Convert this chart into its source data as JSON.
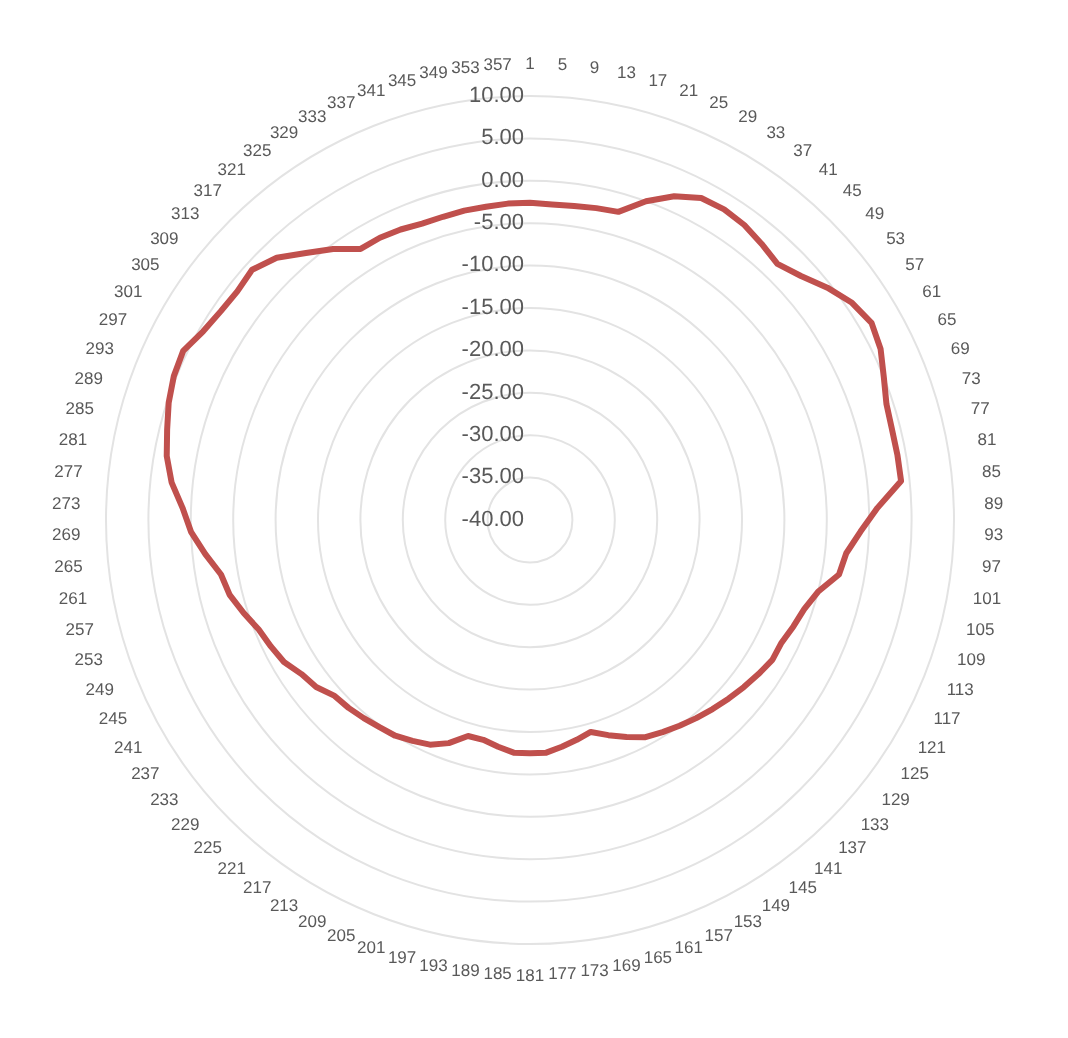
{
  "chart_data": {
    "type": "radar",
    "categories": [
      "1",
      "5",
      "9",
      "13",
      "17",
      "21",
      "25",
      "29",
      "33",
      "37",
      "41",
      "45",
      "49",
      "53",
      "57",
      "61",
      "65",
      "69",
      "73",
      "77",
      "81",
      "85",
      "89",
      "93",
      "97",
      "101",
      "105",
      "109",
      "113",
      "117",
      "121",
      "125",
      "129",
      "133",
      "137",
      "141",
      "145",
      "149",
      "153",
      "157",
      "161",
      "165",
      "169",
      "173",
      "177",
      "181",
      "185",
      "189",
      "193",
      "197",
      "201",
      "205",
      "209",
      "213",
      "217",
      "221",
      "225",
      "229",
      "233",
      "237",
      "241",
      "245",
      "249",
      "253",
      "257",
      "261",
      "265",
      "269",
      "273",
      "277",
      "281",
      "285",
      "289",
      "293",
      "297",
      "301",
      "305",
      "309",
      "313",
      "317",
      "321",
      "325",
      "329",
      "333",
      "337",
      "341",
      "345",
      "349",
      "353",
      "357"
    ],
    "series": [
      {
        "color": "#c0504d",
        "values": [
          -2.6,
          -2.7,
          -2.6,
          -2.4,
          -2.2,
          0,
          1.8,
          3,
          3.2,
          3,
          2.5,
          2,
          3,
          4.5,
          5.8,
          6.5,
          6,
          5,
          4.2,
          4,
          4,
          4,
          1,
          -1,
          -2.5,
          -3,
          -5,
          -6,
          -6.5,
          -7,
          -7,
          -7.5,
          -8,
          -8.5,
          -9,
          -9.5,
          -10,
          -10.5,
          -11,
          -12,
          -13,
          -14,
          -13.5,
          -13,
          -12.5,
          -12.5,
          -12.5,
          -13,
          -13.5,
          -13.5,
          -12,
          -11,
          -10.5,
          -10,
          -9.8,
          -9.5,
          -9.2,
          -9,
          -8,
          -7.5,
          -6.5,
          -6,
          -5.5,
          -4.5,
          -3.5,
          -3,
          -1.5,
          0,
          1,
          2.5,
          3.5,
          4.1,
          4.8,
          5.3,
          5.5,
          4.5,
          4,
          3.8,
          4.1,
          3,
          1.1,
          -0.5,
          -2.3,
          -2.3,
          -2.5,
          -2.8,
          -2.8,
          -2.7,
          -2.7,
          -2.6
        ]
      }
    ],
    "ylim": [
      -40,
      10
    ],
    "yticks": [
      {
        "value": -40,
        "label": "-40.00"
      },
      {
        "value": -35,
        "label": "-35.00"
      },
      {
        "value": -30,
        "label": "-30.00"
      },
      {
        "value": -25,
        "label": "-25.00"
      },
      {
        "value": -20,
        "label": "-20.00"
      },
      {
        "value": -15,
        "label": "-15.00"
      },
      {
        "value": -10,
        "label": "-10.00"
      },
      {
        "value": -5,
        "label": "-5.00"
      },
      {
        "value": 0,
        "label": "0.00"
      },
      {
        "value": 5,
        "label": "5.00"
      },
      {
        "value": 10,
        "label": "10.00"
      }
    ],
    "grid": true
  }
}
